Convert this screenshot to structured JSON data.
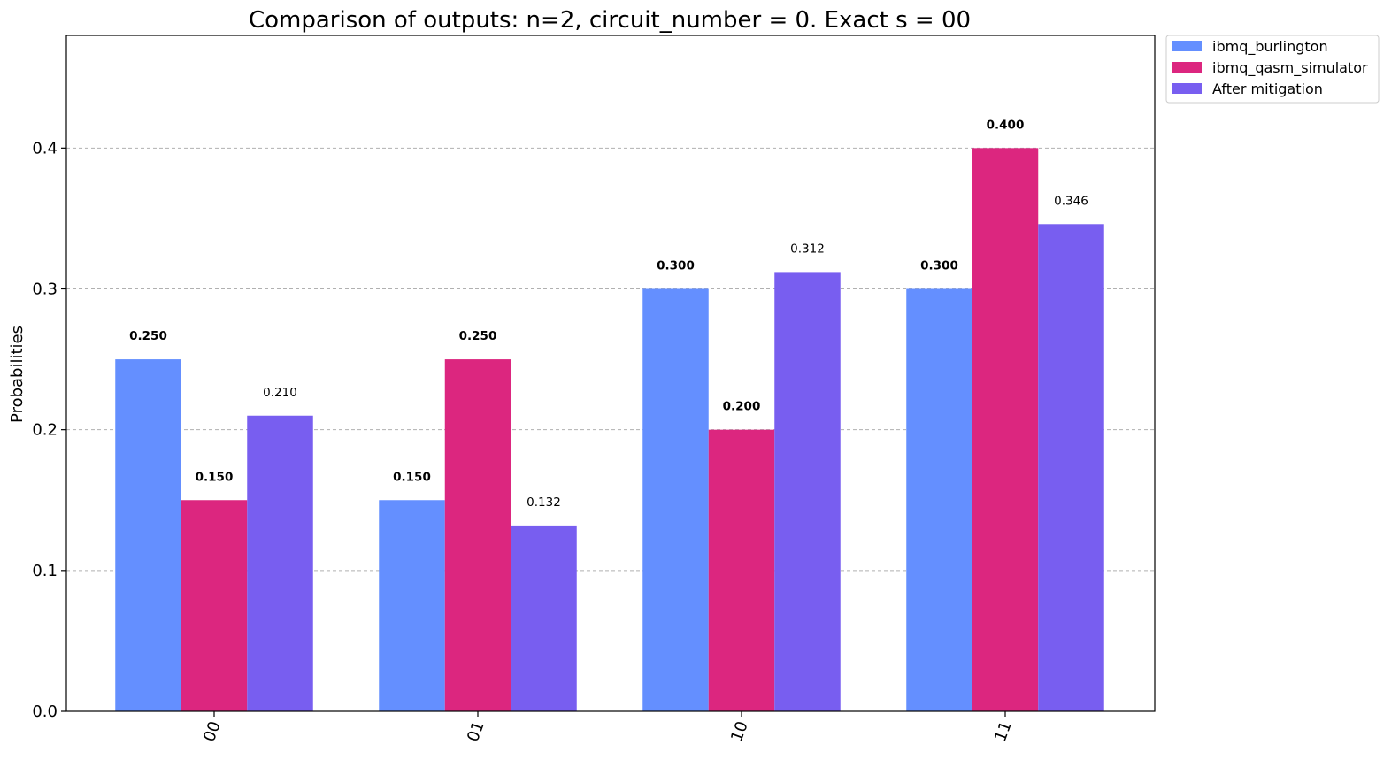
{
  "chart_data": {
    "type": "bar",
    "title": "Comparison of outputs: n=2, circuit_number = 0. Exact s = 00",
    "xlabel": "",
    "ylabel": "Probabilities",
    "categories": [
      "00",
      "01",
      "10",
      "11"
    ],
    "series": [
      {
        "name": "ibmq_burlington",
        "color": "#648fff",
        "values": [
          0.25,
          0.15,
          0.3,
          0.3
        ],
        "labels": [
          "0.250",
          "0.150",
          "0.300",
          "0.300"
        ]
      },
      {
        "name": "ibmq_qasm_simulator",
        "color": "#dc267f",
        "values": [
          0.15,
          0.25,
          0.2,
          0.4
        ],
        "labels": [
          "0.150",
          "0.250",
          "0.200",
          "0.400"
        ]
      },
      {
        "name": "After mitigation",
        "color": "#785ef0",
        "values": [
          0.21,
          0.132,
          0.312,
          0.346
        ],
        "labels": [
          "0.210",
          "0.132",
          "0.312",
          "0.346"
        ]
      }
    ],
    "yticks": [
      "0.0",
      "0.1",
      "0.2",
      "0.3",
      "0.4"
    ],
    "ylim": [
      0,
      0.48
    ],
    "grid": "y-dashed",
    "legend": "outside-top-right"
  }
}
